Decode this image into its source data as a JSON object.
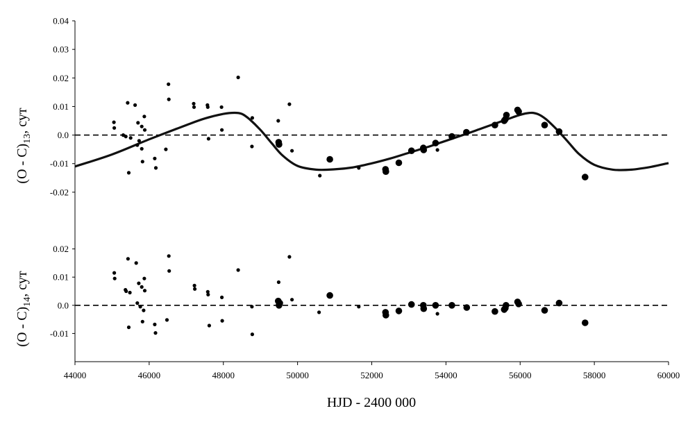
{
  "chart_data": {
    "type": "scatter",
    "xlabel": "HJD - 2400 000",
    "x_range": [
      44000,
      60000
    ],
    "x_ticks": [
      "44000",
      "46000",
      "48000",
      "50000",
      "52000",
      "54000",
      "56000",
      "58000",
      "60000"
    ],
    "panels": [
      {
        "id": "top",
        "ylabel_main": "(O - C)",
        "ylabel_sub": "13",
        "ylabel_unit": ", сут",
        "y_range": [
          -0.03,
          0.04
        ],
        "y_ticks": [
          "0.04",
          "0.03",
          "0.02",
          "0.01",
          "0.0",
          "-0.01",
          "-0.02"
        ],
        "zero_line": true,
        "series": [
          {
            "size": "small",
            "points": [
              [
                45050,
                0.0045
              ],
              [
                45060,
                0.0025
              ],
              [
                45300,
                0.0
              ],
              [
                45370,
                -0.0005
              ],
              [
                45420,
                0.0113
              ],
              [
                45450,
                -0.0132
              ],
              [
                45500,
                -0.001
              ],
              [
                45620,
                0.0105
              ],
              [
                45680,
                -0.0035
              ],
              [
                45700,
                0.0043
              ],
              [
                45730,
                -0.002
              ],
              [
                45800,
                0.003
              ],
              [
                45800,
                -0.0048
              ],
              [
                45820,
                -0.0093
              ],
              [
                45870,
                0.0065
              ],
              [
                45880,
                0.0018
              ],
              [
                46150,
                -0.0082
              ],
              [
                46180,
                -0.0115
              ],
              [
                46450,
                -0.005
              ],
              [
                46520,
                0.0178
              ],
              [
                46530,
                0.0125
              ],
              [
                47200,
                0.011
              ],
              [
                47210,
                0.0098
              ],
              [
                47570,
                0.0105
              ],
              [
                47580,
                0.0098
              ],
              [
                47600,
                -0.0013
              ],
              [
                47950,
                0.0098
              ],
              [
                47960,
                0.0018
              ],
              [
                48400,
                0.0202
              ],
              [
                48770,
                -0.004
              ],
              [
                48780,
                0.006
              ],
              [
                49480,
                0.005
              ],
              [
                49780,
                0.0108
              ],
              [
                49850,
                -0.0055
              ],
              [
                50600,
                -0.0142
              ],
              [
                51650,
                -0.0115
              ],
              [
                53770,
                -0.0052
              ]
            ]
          },
          {
            "size": "large",
            "points": [
              [
                49490,
                -0.0025
              ],
              [
                49500,
                -0.0033
              ],
              [
                50870,
                -0.0085
              ],
              [
                52370,
                -0.012
              ],
              [
                52380,
                -0.0128
              ],
              [
                52730,
                -0.0097
              ],
              [
                53070,
                -0.0055
              ],
              [
                53390,
                -0.0045
              ],
              [
                53400,
                -0.0052
              ],
              [
                53720,
                -0.0028
              ],
              [
                54160,
                -0.0005
              ],
              [
                54550,
                0.001
              ],
              [
                55320,
                0.0035
              ],
              [
                55570,
                0.005
              ],
              [
                55600,
                0.0055
              ],
              [
                55630,
                0.007
              ],
              [
                55930,
                0.0088
              ],
              [
                55960,
                0.0082
              ],
              [
                56660,
                0.0035
              ],
              [
                57050,
                0.0012
              ],
              [
                57750,
                -0.0147
              ]
            ]
          }
        ],
        "model_curve": {
          "name": "",
          "x": [
            44000,
            45000,
            46000,
            47000,
            47500,
            48000,
            48300,
            48500,
            48700,
            49000,
            49300,
            49600,
            50000,
            50500,
            51000,
            51500,
            52000,
            52500,
            53000,
            53500,
            54000,
            54500,
            55000,
            55500,
            56000,
            56300,
            56500,
            56700,
            57000,
            57300,
            57600,
            58000,
            58500,
            59000,
            59500,
            60000
          ],
          "y": [
            -0.011,
            -0.0068,
            -0.0015,
            0.0035,
            0.0058,
            0.0074,
            0.0078,
            0.0074,
            0.0056,
            0.0018,
            -0.0028,
            -0.0072,
            -0.0108,
            -0.0121,
            -0.012,
            -0.0113,
            -0.0099,
            -0.0082,
            -0.0062,
            -0.0042,
            -0.002,
            0.0002,
            0.0025,
            0.0048,
            0.0071,
            0.0078,
            0.0072,
            0.0055,
            0.0018,
            -0.0025,
            -0.0068,
            -0.0104,
            -0.0121,
            -0.0121,
            -0.0112,
            -0.0098
          ]
        }
      },
      {
        "id": "bottom",
        "ylabel_main": "(O - C)",
        "ylabel_sub": "14",
        "ylabel_unit": ", сут",
        "y_range": [
          -0.02,
          0.03
        ],
        "y_ticks": [
          "0.02",
          "0.01",
          "0.0",
          "-0.01"
        ],
        "zero_line": true,
        "series": [
          {
            "size": "small",
            "points": [
              [
                45060,
                0.0115
              ],
              [
                45070,
                0.0095
              ],
              [
                45360,
                0.0055
              ],
              [
                45380,
                0.005
              ],
              [
                45430,
                0.0165
              ],
              [
                45450,
                -0.0078
              ],
              [
                45480,
                0.0045
              ],
              [
                45650,
                0.015
              ],
              [
                45680,
                0.0008
              ],
              [
                45720,
                0.0078
              ],
              [
                45760,
                -0.0005
              ],
              [
                45800,
                0.0065
              ],
              [
                45820,
                -0.0058
              ],
              [
                45850,
                -0.0018
              ],
              [
                45870,
                0.0095
              ],
              [
                45880,
                0.0052
              ],
              [
                46150,
                -0.0068
              ],
              [
                46170,
                -0.0098
              ],
              [
                46480,
                -0.0052
              ],
              [
                46530,
                0.0175
              ],
              [
                46540,
                0.0122
              ],
              [
                47220,
                0.007
              ],
              [
                47230,
                0.0058
              ],
              [
                47580,
                0.0048
              ],
              [
                47590,
                0.0038
              ],
              [
                47620,
                -0.0072
              ],
              [
                47960,
                0.0028
              ],
              [
                47970,
                -0.0055
              ],
              [
                48400,
                0.0125
              ],
              [
                48770,
                -0.0005
              ],
              [
                48780,
                -0.0103
              ],
              [
                49490,
                0.0082
              ],
              [
                49780,
                0.0172
              ],
              [
                49850,
                0.002
              ],
              [
                50580,
                -0.0025
              ],
              [
                51650,
                -0.0005
              ],
              [
                53770,
                -0.003
              ]
            ]
          },
          {
            "size": "large",
            "points": [
              [
                49480,
                0.0015
              ],
              [
                49500,
                0.0
              ],
              [
                49520,
                0.0008
              ],
              [
                50870,
                0.0035
              ],
              [
                52370,
                -0.0025
              ],
              [
                52380,
                -0.0035
              ],
              [
                52730,
                -0.002
              ],
              [
                53070,
                0.0003
              ],
              [
                53390,
                0.0
              ],
              [
                53400,
                -0.0012
              ],
              [
                53720,
                0.0
              ],
              [
                54160,
                0.0
              ],
              [
                54560,
                -0.0008
              ],
              [
                55320,
                -0.0022
              ],
              [
                55570,
                -0.0015
              ],
              [
                55600,
                -0.001
              ],
              [
                55620,
                0.0
              ],
              [
                55930,
                0.0012
              ],
              [
                55960,
                0.0005
              ],
              [
                56660,
                -0.0018
              ],
              [
                57050,
                0.0008
              ],
              [
                57750,
                -0.0062
              ]
            ]
          }
        ]
      }
    ]
  }
}
